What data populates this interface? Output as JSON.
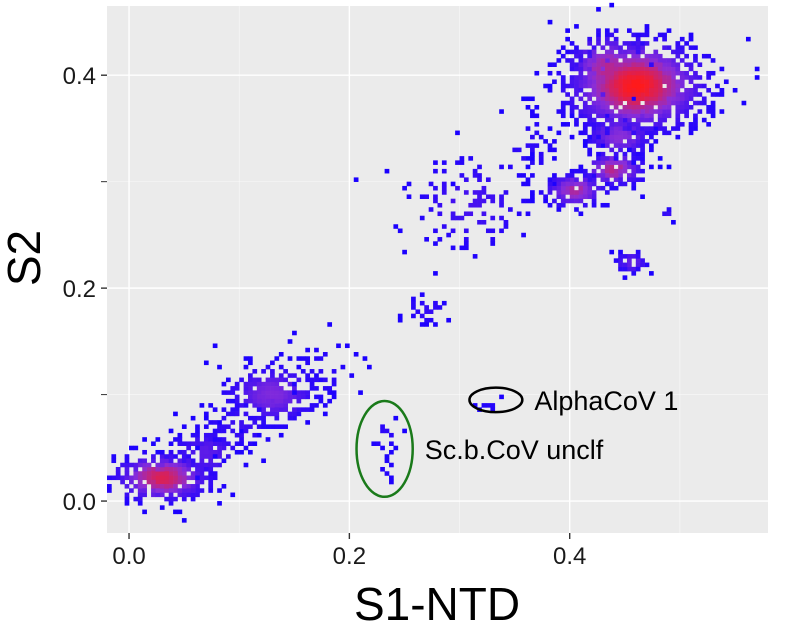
{
  "chart_data": {
    "type": "heatmap",
    "xlabel": "S1-NTD",
    "ylabel": "S2",
    "xlim": [
      -0.02,
      0.58
    ],
    "ylim": [
      -0.03,
      0.465
    ],
    "x_ticks": [
      0.0,
      0.2,
      0.4
    ],
    "x_tick_labels": [
      "0.0",
      "0.2",
      "0.4"
    ],
    "y_ticks": [
      0.0,
      0.2,
      0.4
    ],
    "y_tick_labels": [
      "0.0",
      "0.2",
      "0.4"
    ],
    "grid": true,
    "legend": "none",
    "bin_size": 0.004,
    "colors": {
      "panel": "#ebebeb",
      "grid_major": "#ffffff",
      "low": "#1a00ff",
      "mid": "#8a2ed8",
      "high": "#ff1a1a"
    },
    "clusters": [
      {
        "x": 0.03,
        "y": 0.022,
        "sx": 0.022,
        "sy": 0.011,
        "n": 360,
        "peak": 0.85
      },
      {
        "x": 0.07,
        "y": 0.045,
        "sx": 0.018,
        "sy": 0.012,
        "n": 110,
        "peak": 0.3
      },
      {
        "x": 0.13,
        "y": 0.1,
        "sx": 0.022,
        "sy": 0.014,
        "n": 260,
        "peak": 0.45
      },
      {
        "x": 0.1,
        "y": 0.072,
        "sx": 0.02,
        "sy": 0.014,
        "n": 70,
        "peak": 0.15
      },
      {
        "x": 0.175,
        "y": 0.118,
        "sx": 0.018,
        "sy": 0.018,
        "n": 50,
        "peak": 0.1
      },
      {
        "x": 0.232,
        "y": 0.062,
        "sx": 0.006,
        "sy": 0.008,
        "n": 14,
        "peak": 0.1
      },
      {
        "x": 0.233,
        "y": 0.03,
        "sx": 0.006,
        "sy": 0.012,
        "n": 8,
        "peak": 0.05
      },
      {
        "x": 0.33,
        "y": 0.09,
        "sx": 0.008,
        "sy": 0.004,
        "n": 7,
        "peak": 0.05
      },
      {
        "x": 0.27,
        "y": 0.18,
        "sx": 0.012,
        "sy": 0.008,
        "n": 26,
        "peak": 0.12
      },
      {
        "x": 0.31,
        "y": 0.28,
        "sx": 0.03,
        "sy": 0.025,
        "n": 120,
        "peak": 0.2
      },
      {
        "x": 0.36,
        "y": 0.33,
        "sx": 0.02,
        "sy": 0.02,
        "n": 40,
        "peak": 0.1
      },
      {
        "x": 0.405,
        "y": 0.292,
        "sx": 0.014,
        "sy": 0.008,
        "n": 140,
        "peak": 0.65
      },
      {
        "x": 0.44,
        "y": 0.312,
        "sx": 0.014,
        "sy": 0.008,
        "n": 140,
        "peak": 0.7
      },
      {
        "x": 0.445,
        "y": 0.343,
        "sx": 0.016,
        "sy": 0.01,
        "n": 160,
        "peak": 0.5
      },
      {
        "x": 0.46,
        "y": 0.39,
        "sx": 0.032,
        "sy": 0.022,
        "n": 1100,
        "peak": 1.0
      },
      {
        "x": 0.435,
        "y": 0.405,
        "sx": 0.02,
        "sy": 0.018,
        "n": 240,
        "peak": 0.7
      },
      {
        "x": 0.455,
        "y": 0.224,
        "sx": 0.008,
        "sy": 0.005,
        "n": 45,
        "peak": 0.35
      },
      {
        "x": 0.49,
        "y": 0.27,
        "sx": 0.003,
        "sy": 0.003,
        "n": 8,
        "peak": 0.15
      }
    ],
    "annotations": [
      {
        "label": "AlphaCoV 1",
        "cx": 0.333,
        "cy": 0.095,
        "rx": 0.024,
        "ry": 0.0115,
        "stroke": "#000000"
      },
      {
        "label": "Sc.b.CoV unclf",
        "cx": 0.232,
        "cy": 0.049,
        "rx": 0.0255,
        "ry": 0.045,
        "stroke": "#1a7a1a"
      }
    ]
  }
}
